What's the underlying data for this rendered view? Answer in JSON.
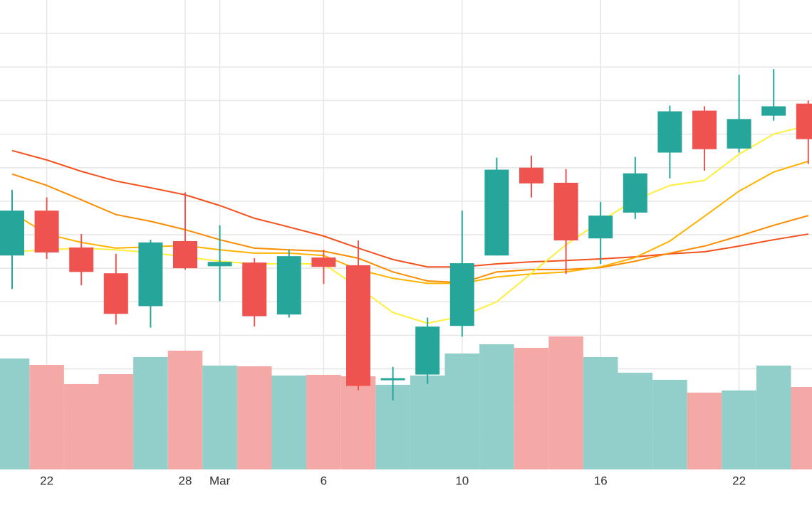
{
  "chart_data": {
    "type": "candlestick",
    "categories": [
      null,
      "22",
      null,
      null,
      null,
      "28",
      "Mar",
      null,
      null,
      "6",
      null,
      null,
      null,
      "10",
      null,
      null,
      null,
      "16",
      null,
      null,
      null,
      "22",
      null,
      null
    ],
    "open": [
      63.8,
      77.2,
      66.2,
      58.5,
      48.7,
      68.1,
      60.6,
      61.7,
      46.2,
      63.2,
      60.9,
      26.6,
      28.3,
      42.8,
      63.8,
      90.0,
      85.5,
      68.9,
      76.6,
      94.5,
      107.0,
      95.7,
      105.5,
      109.1
    ],
    "high": [
      83.4,
      81.1,
      70.2,
      64.3,
      68.5,
      82.6,
      72.8,
      63.0,
      65.5,
      65.5,
      68.3,
      30.6,
      45.3,
      77.2,
      93.0,
      93.6,
      89.6,
      79.8,
      93.2,
      108.5,
      108.3,
      117.7,
      119.4,
      110.0
    ],
    "low": [
      53.8,
      62.8,
      54.9,
      43.2,
      42.3,
      59.6,
      50.2,
      42.6,
      45.3,
      55.3,
      23.6,
      20.6,
      25.5,
      39.6,
      63.8,
      81.1,
      58.3,
      61.3,
      74.7,
      86.8,
      89.1,
      94.5,
      104.0,
      91.1
    ],
    "close": [
      77.2,
      64.7,
      58.9,
      46.4,
      67.7,
      60.0,
      61.9,
      45.7,
      63.6,
      60.4,
      24.9,
      27.2,
      42.6,
      61.5,
      89.4,
      85.3,
      68.3,
      75.7,
      88.3,
      106.8,
      95.5,
      104.5,
      108.3,
      98.5
    ],
    "volume": [
      312,
      294,
      240,
      268,
      316,
      334,
      292,
      290,
      264,
      266,
      262,
      238,
      264,
      326,
      352,
      342,
      374,
      316,
      272,
      252,
      216,
      222,
      292,
      232
    ],
    "up_color": "#26a69a",
    "down_color": "#ef5350",
    "volume_up_color": "#92cfcb",
    "volume_down_color": "#f5a9a7",
    "series": [
      {
        "color": "#f4511e",
        "values": [
          95.1,
          92.3,
          88.9,
          86.0,
          84.0,
          81.9,
          78.7,
          74.9,
          72.3,
          69.6,
          66.0,
          62.6,
          60.4,
          60.4,
          61.3,
          61.9,
          62.3,
          62.8,
          63.4,
          64.3,
          64.9,
          66.6,
          68.5,
          70.2
        ]
      },
      {
        "color": "#fb8c00",
        "values": [
          88.1,
          84.7,
          80.4,
          76.0,
          74.0,
          71.5,
          68.5,
          66.0,
          65.5,
          65.1,
          63.0,
          58.9,
          56.2,
          55.7,
          58.9,
          59.6,
          59.6,
          60.2,
          62.1,
          64.5,
          66.6,
          69.6,
          72.8,
          75.7
        ]
      },
      {
        "color": "#ffb300",
        "values": [
          76.6,
          70.2,
          67.7,
          66.0,
          66.4,
          66.8,
          65.5,
          64.5,
          64.5,
          63.8,
          59.6,
          57.0,
          55.5,
          55.5,
          57.4,
          58.3,
          58.9,
          60.4,
          63.2,
          68.1,
          75.5,
          83.0,
          88.7,
          91.9
        ]
      },
      {
        "color": "#ffee3a",
        "values": [
          64.9,
          65.5,
          66.0,
          65.5,
          64.7,
          63.4,
          62.1,
          61.3,
          61.3,
          61.3,
          54.3,
          46.8,
          43.6,
          45.7,
          50.0,
          58.5,
          67.0,
          74.0,
          80.4,
          84.7,
          86.2,
          94.0,
          100.0,
          102.6
        ]
      }
    ],
    "ylim": [
      0,
      140
    ],
    "yticks": [
      10,
      20,
      30,
      40,
      50,
      60,
      70,
      80,
      90,
      100,
      110,
      120,
      130
    ],
    "volume_ylim": [
      0,
      1320
    ],
    "grid": true
  }
}
